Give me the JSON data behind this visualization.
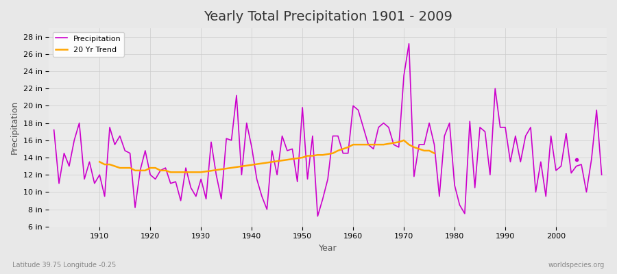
{
  "title": "Yearly Total Precipitation 1901 - 2009",
  "xlabel": "Year",
  "ylabel": "Precipitation",
  "bottom_left_label": "Latitude 39.75 Longitude -0.25",
  "bottom_right_label": "worldspecies.org",
  "background_color": "#e8e8e8",
  "plot_bg_color": "#ebebeb",
  "grid_color": "#cccccc",
  "precip_color": "#cc00cc",
  "trend_color": "#ffa500",
  "ylim": [
    6,
    29
  ],
  "ytick_labels": [
    "6 in",
    "8 in",
    "10 in",
    "12 in",
    "14 in",
    "16 in",
    "18 in",
    "20 in",
    "22 in",
    "24 in",
    "26 in",
    "28 in"
  ],
  "ytick_values": [
    6,
    8,
    10,
    12,
    14,
    16,
    18,
    20,
    22,
    24,
    26,
    28
  ],
  "xlim": [
    1900,
    2010
  ],
  "years": [
    1901,
    1902,
    1903,
    1904,
    1905,
    1906,
    1907,
    1908,
    1909,
    1910,
    1911,
    1912,
    1913,
    1914,
    1915,
    1916,
    1917,
    1918,
    1919,
    1920,
    1921,
    1922,
    1923,
    1924,
    1925,
    1926,
    1927,
    1928,
    1929,
    1930,
    1931,
    1932,
    1933,
    1934,
    1935,
    1936,
    1937,
    1938,
    1939,
    1940,
    1941,
    1942,
    1943,
    1944,
    1945,
    1946,
    1947,
    1948,
    1949,
    1950,
    1951,
    1952,
    1953,
    1954,
    1955,
    1956,
    1957,
    1958,
    1959,
    1960,
    1961,
    1962,
    1963,
    1964,
    1965,
    1966,
    1967,
    1968,
    1969,
    1970,
    1971,
    1972,
    1973,
    1974,
    1975,
    1976,
    1977,
    1978,
    1979,
    1980,
    1981,
    1982,
    1983,
    1984,
    1985,
    1986,
    1987,
    1988,
    1989,
    1990,
    1991,
    1992,
    1993,
    1994,
    1995,
    1996,
    1997,
    1998,
    1999,
    2000,
    2001,
    2002,
    2003,
    2004,
    2005,
    2006,
    2007,
    2008,
    2009
  ],
  "precip": [
    17.2,
    11.0,
    14.5,
    13.0,
    16.0,
    18.0,
    11.5,
    13.5,
    11.0,
    12.0,
    9.5,
    17.5,
    15.5,
    16.5,
    14.8,
    14.5,
    8.2,
    12.5,
    14.8,
    12.0,
    11.5,
    12.5,
    12.8,
    11.0,
    11.2,
    9.0,
    12.8,
    10.5,
    9.5,
    11.5,
    9.2,
    15.8,
    12.0,
    9.2,
    16.2,
    16.0,
    21.2,
    12.0,
    18.0,
    15.2,
    11.5,
    9.5,
    8.0,
    14.8,
    12.0,
    16.5,
    14.8,
    15.0,
    11.2,
    19.8,
    11.5,
    16.5,
    7.2,
    9.2,
    11.5,
    16.5,
    16.5,
    14.5,
    14.5,
    20.0,
    19.5,
    17.5,
    15.5,
    15.0,
    17.5,
    18.0,
    17.5,
    15.5,
    15.2,
    23.5,
    27.2,
    11.8,
    15.5,
    15.5,
    18.0,
    15.5,
    9.5,
    16.5,
    18.0,
    10.8,
    8.5,
    7.5,
    18.2,
    10.5,
    17.5,
    17.0,
    12.0,
    22.0,
    17.5,
    17.5,
    13.5,
    16.5,
    13.5,
    16.5,
    17.5,
    10.0,
    13.5,
    9.5,
    16.5,
    12.5,
    13.0,
    16.8,
    12.2,
    13.0,
    13.2,
    10.0,
    13.8,
    19.5,
    12.0
  ],
  "trend_years": [
    1910,
    1911,
    1912,
    1913,
    1914,
    1915,
    1916,
    1917,
    1918,
    1919,
    1920,
    1921,
    1922,
    1923,
    1924,
    1925,
    1926,
    1927,
    1928,
    1929,
    1930,
    1950,
    1951,
    1952,
    1953,
    1954,
    1955,
    1956,
    1957,
    1958,
    1959,
    1960,
    1961,
    1962,
    1963,
    1964,
    1965,
    1966,
    1967,
    1968,
    1969,
    1970,
    1971,
    1972,
    1973,
    1974,
    1975,
    1976
  ],
  "trend_vals": [
    13.5,
    13.2,
    13.2,
    13.0,
    12.8,
    12.8,
    12.8,
    12.5,
    12.5,
    12.5,
    12.8,
    12.8,
    12.5,
    12.5,
    12.3,
    12.3,
    12.3,
    12.3,
    12.3,
    12.3,
    12.3,
    14.0,
    14.2,
    14.2,
    14.3,
    14.3,
    14.4,
    14.5,
    14.8,
    15.0,
    15.2,
    15.5,
    15.5,
    15.5,
    15.5,
    15.5,
    15.5,
    15.5,
    15.6,
    15.7,
    15.8,
    16.0,
    15.5,
    15.2,
    15.0,
    14.8,
    14.8,
    14.5
  ]
}
